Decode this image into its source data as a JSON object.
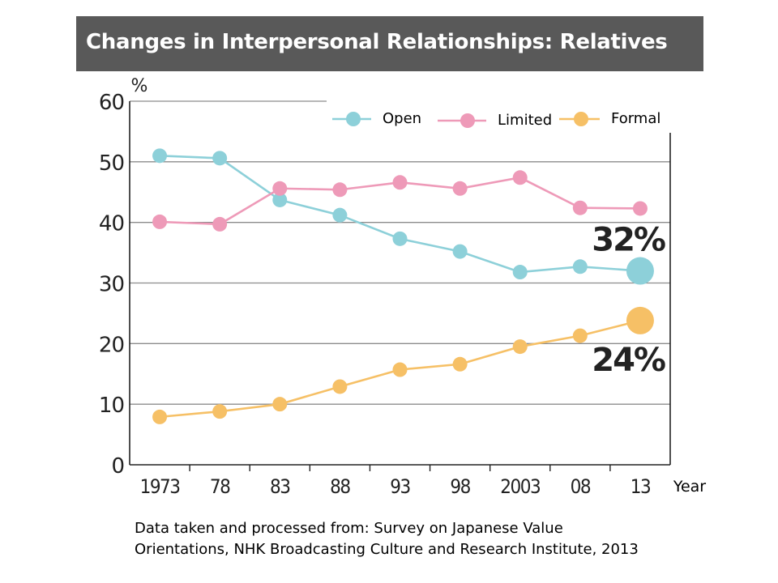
{
  "chart_data": {
    "type": "line",
    "title": "Changes in Interpersonal Relationships: Relatives",
    "ylabel": "%",
    "xlabel": "Year",
    "categories": [
      "1973",
      "78",
      "83",
      "88",
      "93",
      "98",
      "2003",
      "08",
      "13"
    ],
    "ylim": [
      0,
      60
    ],
    "yticks": [
      0,
      10,
      20,
      30,
      40,
      50,
      60
    ],
    "grid": true,
    "legend_position": "top-right",
    "series": [
      {
        "name": "Open",
        "color": "#8dd0d9",
        "values": [
          51,
          50.6,
          43.7,
          41.2,
          37.3,
          35.2,
          31.8,
          32.7,
          32
        ]
      },
      {
        "name": "Limited",
        "color": "#ee9ab8",
        "values": [
          40.1,
          39.7,
          45.6,
          45.4,
          46.6,
          45.6,
          47.4,
          42.4,
          42.3
        ]
      },
      {
        "name": "Formal",
        "color": "#f6c066",
        "values": [
          7.9,
          8.8,
          10,
          12.9,
          15.7,
          16.6,
          19.5,
          21.3,
          23.8
        ]
      }
    ],
    "annotations": [
      {
        "series": "Open",
        "text": "32%"
      },
      {
        "series": "Formal",
        "text": "24%"
      }
    ]
  },
  "source": {
    "line1": "Data taken and processed from: Survey on Japanese Value",
    "line2": "Orientations, NHK Broadcasting Culture and Research Institute, 2013"
  }
}
